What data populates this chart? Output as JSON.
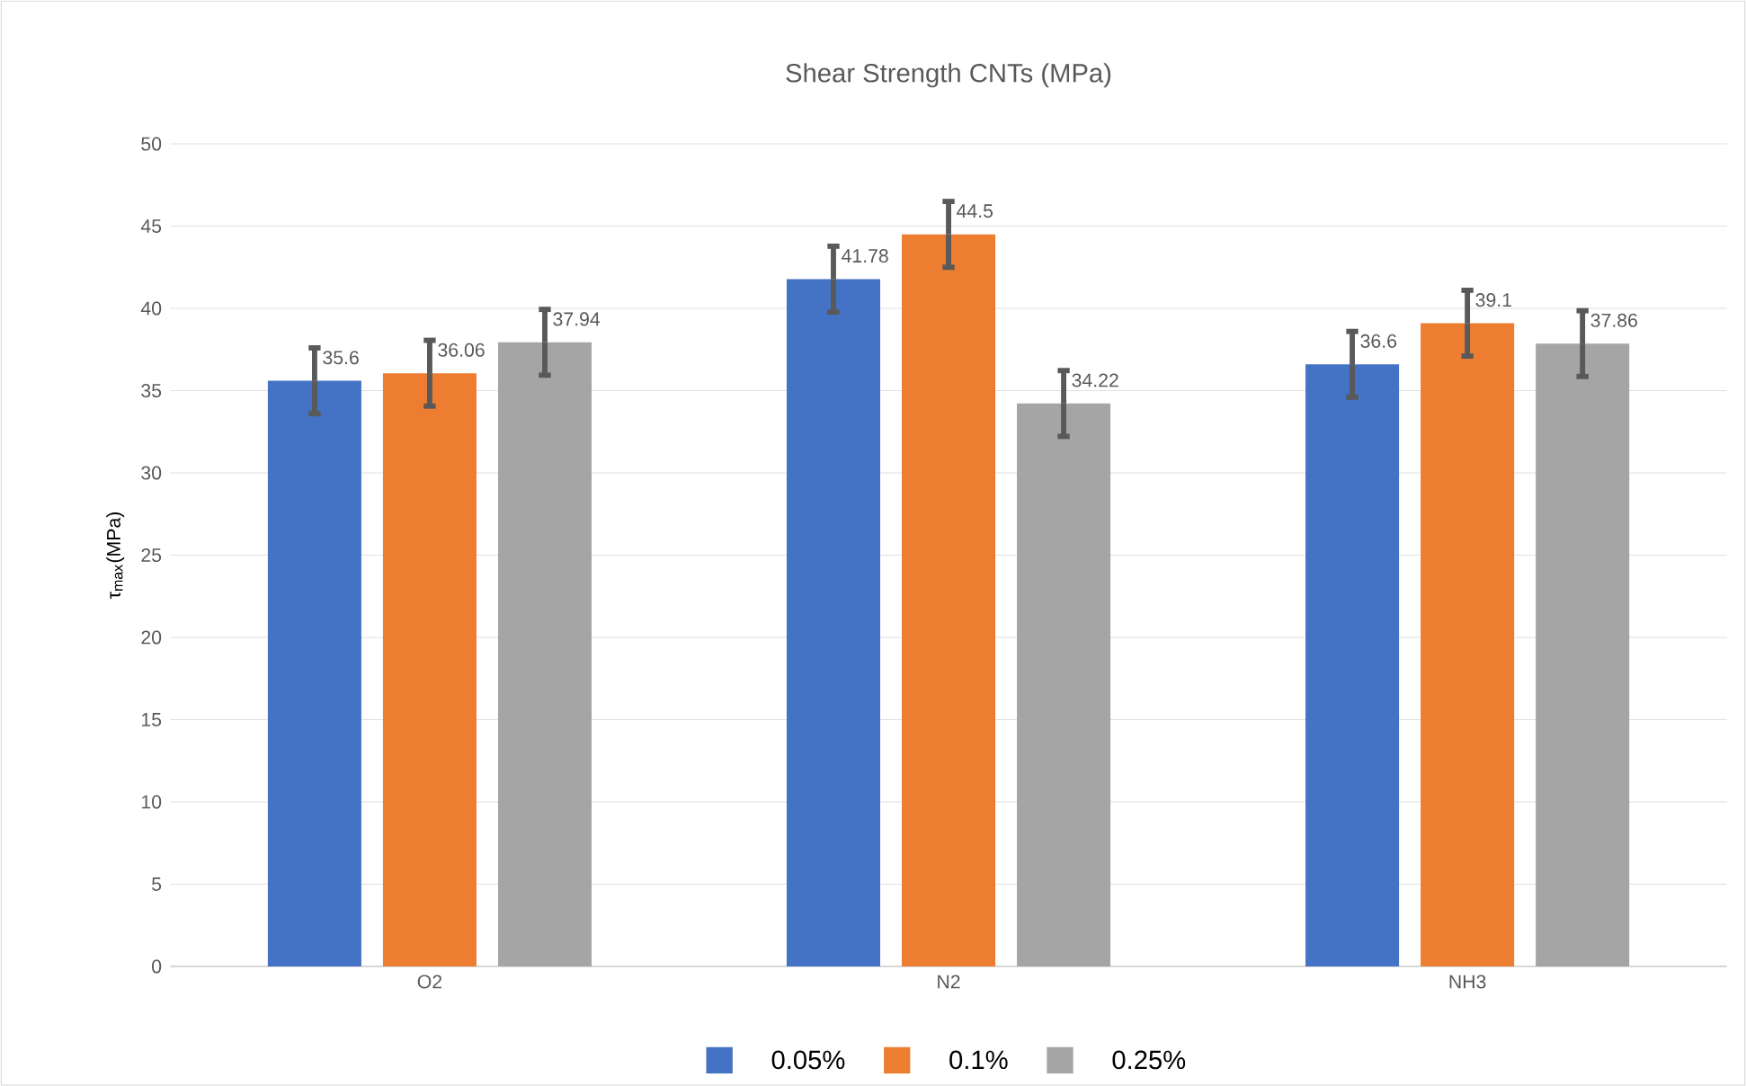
{
  "chart_data": {
    "type": "bar",
    "title": "Shear Strength CNTs (MPa)",
    "ylabel": "τ$_{max}$(MPa)",
    "categories": [
      "O2",
      "N2",
      "NH3"
    ],
    "series": [
      {
        "name": "0.05%",
        "color": "#4472c4",
        "values": [
          35.6,
          41.78,
          36.6
        ],
        "errors": [
          2,
          2,
          2
        ]
      },
      {
        "name": "0.1%",
        "color": "#ed7d31",
        "values": [
          36.06,
          44.5,
          39.1
        ],
        "errors": [
          2,
          2,
          2
        ]
      },
      {
        "name": "0.25%",
        "color": "#a5a5a5",
        "values": [
          37.94,
          34.22,
          37.86
        ],
        "errors": [
          2,
          2,
          2
        ]
      }
    ],
    "ylim": [
      0,
      50
    ],
    "yticks": [
      0,
      5,
      10,
      15,
      20,
      25,
      30,
      35,
      40,
      45,
      50
    ],
    "grid": "y",
    "legend": "bottom",
    "data_labels": true
  }
}
